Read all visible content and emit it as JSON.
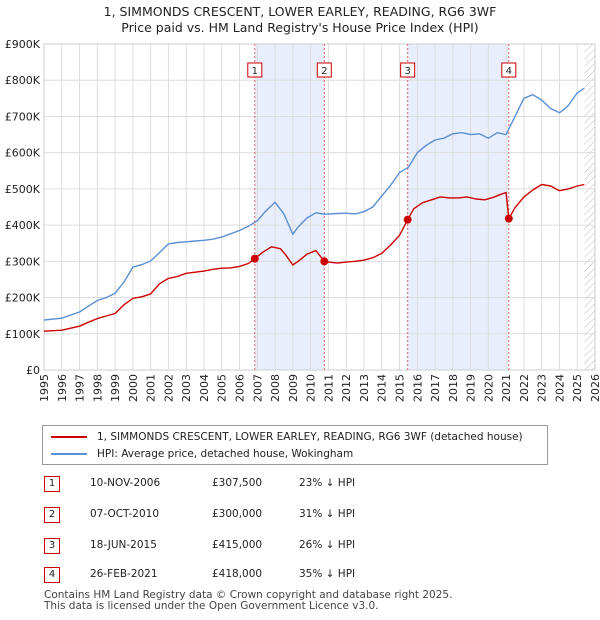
{
  "chart_data": {
    "type": "line",
    "title": "1, SIMMONDS CRESCENT, LOWER EARLEY, READING, RG6 3WF",
    "subtitle": "Price paid vs. HM Land Registry's House Price Index (HPI)",
    "xlabel": "",
    "ylabel": "",
    "xlim": [
      1995,
      2026
    ],
    "ylim": [
      0,
      900000
    ],
    "y_ticks": [
      {
        "value": 0,
        "label": "£0"
      },
      {
        "value": 100000,
        "label": "£100K"
      },
      {
        "value": 200000,
        "label": "£200K"
      },
      {
        "value": 300000,
        "label": "£300K"
      },
      {
        "value": 400000,
        "label": "£400K"
      },
      {
        "value": 500000,
        "label": "£500K"
      },
      {
        "value": 600000,
        "label": "£600K"
      },
      {
        "value": 700000,
        "label": "£700K"
      },
      {
        "value": 800000,
        "label": "£800K"
      },
      {
        "value": 900000,
        "label": "£900K"
      }
    ],
    "x_ticks": [
      "1995",
      "1996",
      "1997",
      "1998",
      "1999",
      "2000",
      "2001",
      "2002",
      "2003",
      "2004",
      "2005",
      "2006",
      "2007",
      "2008",
      "2009",
      "2010",
      "2011",
      "2012",
      "2013",
      "2014",
      "2015",
      "2016",
      "2017",
      "2018",
      "2019",
      "2020",
      "2021",
      "2022",
      "2023",
      "2024",
      "2025",
      "2026"
    ],
    "series": [
      {
        "name": "1, SIMMONDS CRESCENT, LOWER EARLEY, READING, RG6 3WF (detached house)",
        "color": "#cc0000",
        "x": [
          1995.0,
          1996.0,
          1997.0,
          1997.5,
          1998.0,
          1998.5,
          1999.0,
          1999.5,
          2000.0,
          2000.5,
          2001.0,
          2001.5,
          2002.0,
          2002.5,
          2003.0,
          2003.5,
          2004.0,
          2004.5,
          2005.0,
          2005.5,
          2006.0,
          2006.5,
          2006.86,
          2007.3,
          2007.8,
          2008.3,
          2008.6,
          2009.0,
          2009.3,
          2009.8,
          2010.3,
          2010.77,
          2011.0,
          2011.5,
          2012.0,
          2012.5,
          2013.0,
          2013.5,
          2014.0,
          2014.5,
          2015.0,
          2015.46,
          2015.8,
          2016.3,
          2016.8,
          2017.3,
          2017.8,
          2018.3,
          2018.8,
          2019.3,
          2019.8,
          2020.3,
          2020.7,
          2021.0,
          2021.15,
          2021.5,
          2022.0,
          2022.5,
          2023.0,
          2023.5,
          2024.0,
          2024.5,
          2025.0,
          2025.4
        ],
        "y": [
          107000,
          110000,
          121000,
          132000,
          142000,
          149000,
          156000,
          180000,
          198000,
          202000,
          210000,
          238000,
          253000,
          258000,
          267000,
          270000,
          273000,
          278000,
          281000,
          282000,
          286000,
          294000,
          307500,
          325000,
          340000,
          335000,
          318000,
          290000,
          300000,
          320000,
          330000,
          300000,
          298000,
          295000,
          298000,
          300000,
          303000,
          310000,
          322000,
          345000,
          372000,
          415000,
          445000,
          462000,
          470000,
          478000,
          475000,
          475000,
          478000,
          472000,
          470000,
          477000,
          485000,
          490000,
          418000,
          448000,
          478000,
          497000,
          512000,
          508000,
          495000,
          500000,
          508000,
          512000
        ]
      },
      {
        "name": "HPI: Average price, detached house, Wokingham",
        "color": "#5b8fd4",
        "x": [
          1995.0,
          1996.0,
          1997.0,
          1997.5,
          1998.0,
          1998.5,
          1999.0,
          1999.5,
          2000.0,
          2000.5,
          2001.0,
          2001.5,
          2002.0,
          2002.5,
          2003.0,
          2003.5,
          2004.0,
          2004.5,
          2005.0,
          2005.5,
          2006.0,
          2006.5,
          2007.0,
          2007.5,
          2008.0,
          2008.5,
          2009.0,
          2009.3,
          2009.8,
          2010.3,
          2010.8,
          2011.5,
          2012.0,
          2012.5,
          2013.0,
          2013.5,
          2014.0,
          2014.5,
          2015.0,
          2015.5,
          2016.0,
          2016.5,
          2017.0,
          2017.5,
          2018.0,
          2018.5,
          2019.0,
          2019.5,
          2020.0,
          2020.5,
          2021.0,
          2021.5,
          2022.0,
          2022.5,
          2023.0,
          2023.5,
          2024.0,
          2024.5,
          2025.0,
          2025.4
        ],
        "y": [
          138000,
          143000,
          160000,
          176000,
          192000,
          200000,
          212000,
          243000,
          284000,
          291000,
          301000,
          324000,
          348000,
          352000,
          354000,
          356000,
          358000,
          361000,
          367000,
          376000,
          385000,
          397000,
          412000,
          440000,
          463000,
          430000,
          375000,
          395000,
          420000,
          434000,
          430000,
          432000,
          433000,
          431000,
          437000,
          450000,
          480000,
          510000,
          545000,
          560000,
          600000,
          620000,
          635000,
          640000,
          652000,
          655000,
          650000,
          652000,
          640000,
          655000,
          650000,
          700000,
          750000,
          760000,
          745000,
          722000,
          710000,
          730000,
          765000,
          778000
        ]
      }
    ],
    "sales": [
      {
        "n": "1",
        "x": 2006.86,
        "y": 307500
      },
      {
        "n": "2",
        "x": 2010.77,
        "y": 300000
      },
      {
        "n": "3",
        "x": 2015.46,
        "y": 415000
      },
      {
        "n": "4",
        "x": 2021.15,
        "y": 418000
      }
    ],
    "shaded_spans": [
      [
        2006.86,
        2010.77
      ],
      [
        2015.46,
        2021.15
      ]
    ]
  },
  "legend": {
    "property_label": "1, SIMMONDS CRESCENT, LOWER EARLEY, READING, RG6 3WF (detached house)",
    "hpi_label": "HPI: Average price, detached house, Wokingham"
  },
  "transactions": [
    {
      "num": "1",
      "date": "10-NOV-2006",
      "price": "£307,500",
      "hpi": "23% ↓ HPI"
    },
    {
      "num": "2",
      "date": "07-OCT-2010",
      "price": "£300,000",
      "hpi": "31% ↓ HPI"
    },
    {
      "num": "3",
      "date": "18-JUN-2015",
      "price": "£415,000",
      "hpi": "26% ↓ HPI"
    },
    {
      "num": "4",
      "date": "26-FEB-2021",
      "price": "£418,000",
      "hpi": "35% ↓ HPI"
    }
  ],
  "footer": {
    "line1": "Contains HM Land Registry data © Crown copyright and database right 2025.",
    "line2": "This data is licensed under the Open Government Licence v3.0."
  },
  "colors": {
    "property": "#cc0000",
    "hpi": "#5b8fd4",
    "shade": "#e8eefb",
    "grid": "#dddddd"
  }
}
